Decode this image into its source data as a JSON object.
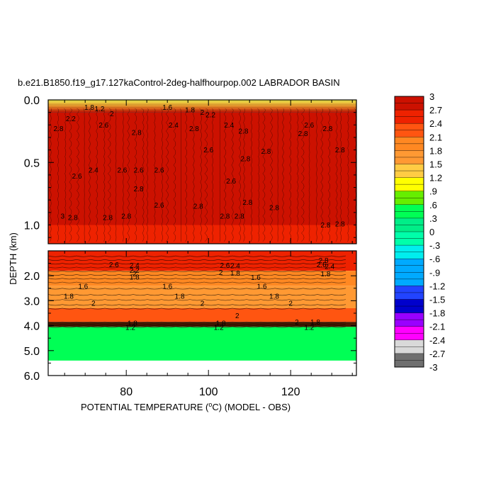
{
  "chart_data": {
    "type": "heatmap",
    "title": "b.e21.B1850.f19_g17.127kaControl-2deg-halfhourpop.002 LABRADOR BASIN",
    "xlabel_main": "POTENTIAL TEMPERATURE (",
    "xlabel_degree": "o",
    "xlabel_unit": "C) (MODEL - OBS)",
    "ylabel": "DEPTH (km)",
    "x_ticks": [
      "80",
      "100",
      "120"
    ],
    "x_tick_values": [
      80,
      100,
      120
    ],
    "xlim": [
      61,
      136
    ],
    "y_ticks_upper": [
      "0.0",
      "0.5",
      "1.0"
    ],
    "y_tick_values_upper": [
      0.0,
      0.5,
      1.0
    ],
    "ylim_upper": [
      0.0,
      1.15
    ],
    "y_ticks_lower": [
      "2.0",
      "3.0",
      "4.0",
      "5.0",
      "6.0"
    ],
    "y_tick_values_lower": [
      2.0,
      3.0,
      4.0,
      5.0,
      6.0
    ],
    "ylim_lower": [
      1.0,
      6.0
    ],
    "colorbar": {
      "labels": [
        "3",
        "2.7",
        "2.4",
        "2.1",
        "1.8",
        "1.5",
        "1.2",
        ".9",
        ".6",
        ".3",
        "0",
        "-.3",
        "-.6",
        "-.9",
        "-1.2",
        "-1.5",
        "-1.8",
        "-2.1",
        "-2.4",
        "-2.7",
        "-3"
      ],
      "label_values": [
        3,
        2.7,
        2.4,
        2.1,
        1.8,
        1.5,
        1.2,
        0.9,
        0.6,
        0.3,
        0,
        -0.3,
        -0.6,
        -0.9,
        -1.2,
        -1.5,
        -1.8,
        -2.1,
        -2.4,
        -2.7,
        -3
      ]
    },
    "layers": [
      {
        "depth_top": 0.0,
        "depth_bottom": 0.1,
        "value": 1.2
      },
      {
        "depth_top": 0.1,
        "depth_bottom": 1.15,
        "value": 2.7
      },
      {
        "depth_top": 1.0,
        "depth_bottom": 1.8,
        "value": 2.6
      },
      {
        "depth_top": 1.8,
        "depth_bottom": 2.4,
        "value": 1.8
      },
      {
        "depth_top": 2.4,
        "depth_bottom": 3.3,
        "value": 1.5
      },
      {
        "depth_top": 3.3,
        "depth_bottom": 3.85,
        "value": 2.1
      },
      {
        "depth_top": 3.85,
        "depth_bottom": 4.05,
        "value": 2.9
      },
      {
        "depth_top": 4.05,
        "depth_bottom": 5.4,
        "value": 0.3
      }
    ],
    "contour_labels": [
      {
        "text": "1.8",
        "x": 71,
        "y": 0.06
      },
      {
        "text": "1.2",
        "x": 73.5,
        "y": 0.07
      },
      {
        "text": "1.6",
        "x": 90,
        "y": 0.06
      },
      {
        "text": "1.8",
        "x": 95.5,
        "y": 0.08
      },
      {
        "text": "2",
        "x": 98.5,
        "y": 0.1
      },
      {
        "text": "2.2",
        "x": 100.5,
        "y": 0.12
      },
      {
        "text": "2.2",
        "x": 66.5,
        "y": 0.15
      },
      {
        "text": "2",
        "x": 76.5,
        "y": 0.11
      },
      {
        "text": "2.6",
        "x": 74.5,
        "y": 0.2
      },
      {
        "text": "2.4",
        "x": 91.5,
        "y": 0.2
      },
      {
        "text": "2.4",
        "x": 105,
        "y": 0.2
      },
      {
        "text": "2.6",
        "x": 124.5,
        "y": 0.2
      },
      {
        "text": "2.8",
        "x": 63.5,
        "y": 0.23
      },
      {
        "text": "2.8",
        "x": 82.5,
        "y": 0.26
      },
      {
        "text": "2.8",
        "x": 96.5,
        "y": 0.23
      },
      {
        "text": "2.8",
        "x": 108.5,
        "y": 0.25
      },
      {
        "text": "2.8",
        "x": 129,
        "y": 0.23
      },
      {
        "text": "2.8",
        "x": 123,
        "y": 0.27
      },
      {
        "text": "2.6",
        "x": 100,
        "y": 0.4
      },
      {
        "text": "2.8",
        "x": 132,
        "y": 0.4
      },
      {
        "text": "2.8",
        "x": 109,
        "y": 0.47
      },
      {
        "text": "2.8",
        "x": 114,
        "y": 0.41
      },
      {
        "text": "2.4",
        "x": 72,
        "y": 0.56
      },
      {
        "text": "2.6",
        "x": 79,
        "y": 0.56
      },
      {
        "text": "2.6",
        "x": 83,
        "y": 0.56
      },
      {
        "text": "2.6",
        "x": 88,
        "y": 0.56
      },
      {
        "text": "2.6",
        "x": 68,
        "y": 0.61
      },
      {
        "text": "2.8",
        "x": 83,
        "y": 0.71
      },
      {
        "text": "2.6",
        "x": 88,
        "y": 0.84
      },
      {
        "text": "2.6",
        "x": 105.5,
        "y": 0.65
      },
      {
        "text": "2.8",
        "x": 97.5,
        "y": 0.85
      },
      {
        "text": "2.8",
        "x": 109.5,
        "y": 0.82
      },
      {
        "text": "2.8",
        "x": 116,
        "y": 0.86
      },
      {
        "text": "3",
        "x": 64.5,
        "y": 0.93
      },
      {
        "text": "2.8",
        "x": 67,
        "y": 0.94
      },
      {
        "text": "2.8",
        "x": 75.5,
        "y": 0.94
      },
      {
        "text": "2.8",
        "x": 80,
        "y": 0.93
      },
      {
        "text": "2.8",
        "x": 104,
        "y": 0.93
      },
      {
        "text": "2.8",
        "x": 107.5,
        "y": 0.93
      },
      {
        "text": "2.8",
        "x": 128.5,
        "y": 1.0
      },
      {
        "text": "2.8",
        "x": 132,
        "y": 0.99
      },
      {
        "text": "2.8",
        "x": 128,
        "y": 1.38
      },
      {
        "text": "2.6",
        "x": 77,
        "y": 1.55
      },
      {
        "text": "2.4",
        "x": 82,
        "y": 1.58
      },
      {
        "text": "2.6",
        "x": 104,
        "y": 1.58
      },
      {
        "text": "2.4",
        "x": 106.5,
        "y": 1.6
      },
      {
        "text": "2.6",
        "x": 127.5,
        "y": 1.55
      },
      {
        "text": "2.4",
        "x": 129.5,
        "y": 1.63
      },
      {
        "text": "2.2",
        "x": 82,
        "y": 1.78
      },
      {
        "text": "2",
        "x": 82,
        "y": 1.92
      },
      {
        "text": "2",
        "x": 103,
        "y": 1.86
      },
      {
        "text": "1.8",
        "x": 106.5,
        "y": 1.9
      },
      {
        "text": "1.8",
        "x": 82,
        "y": 2.05
      },
      {
        "text": "1.8",
        "x": 128.5,
        "y": 1.92
      },
      {
        "text": "1.6",
        "x": 111.5,
        "y": 2.07
      },
      {
        "text": "1.6",
        "x": 69.5,
        "y": 2.42
      },
      {
        "text": "1.6",
        "x": 90,
        "y": 2.42
      },
      {
        "text": "1.6",
        "x": 113,
        "y": 2.42
      },
      {
        "text": "1.8",
        "x": 66,
        "y": 2.82
      },
      {
        "text": "1.8",
        "x": 93,
        "y": 2.82
      },
      {
        "text": "1.8",
        "x": 116,
        "y": 2.82
      },
      {
        "text": "2",
        "x": 72,
        "y": 3.1
      },
      {
        "text": "2",
        "x": 98.5,
        "y": 3.1
      },
      {
        "text": "2",
        "x": 120,
        "y": 3.1
      },
      {
        "text": "2",
        "x": 107,
        "y": 3.6
      },
      {
        "text": "2",
        "x": 121.5,
        "y": 3.85
      },
      {
        "text": "1.8",
        "x": 81.5,
        "y": 3.9
      },
      {
        "text": "1.8",
        "x": 103,
        "y": 3.9
      },
      {
        "text": "1.8",
        "x": 126,
        "y": 3.85
      },
      {
        "text": "1.2",
        "x": 81,
        "y": 4.07
      },
      {
        "text": "1.2",
        "x": 102.5,
        "y": 4.07
      },
      {
        "text": "1.2",
        "x": 124.5,
        "y": 4.07
      }
    ]
  }
}
